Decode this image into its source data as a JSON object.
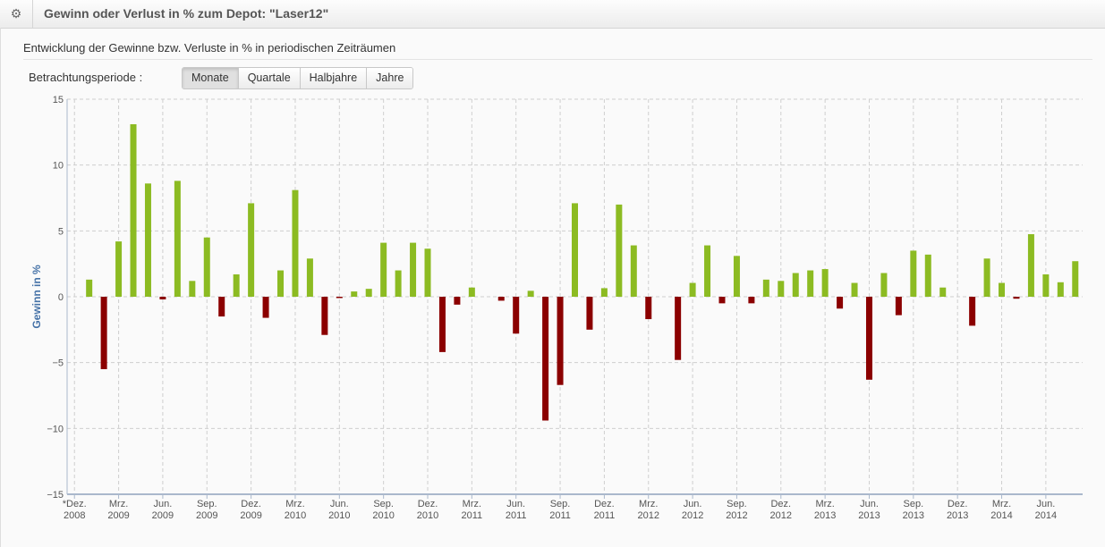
{
  "header": {
    "title": "Gewinn oder Verlust in % zum Depot: \"Laser12\"",
    "icon": "gear-icon"
  },
  "subtitle": "Entwicklung der Gewinne bzw. Verluste in % in periodischen Zeiträumen",
  "period": {
    "label": "Betrachtungsperiode :",
    "options": [
      "Monate",
      "Quartale",
      "Halbjahre",
      "Jahre"
    ],
    "selected": "Monate"
  },
  "chart_data": {
    "type": "bar",
    "title": "",
    "ylabel": "Gewinn in %",
    "xlabel": "",
    "ylim": [
      -15,
      15
    ],
    "yticks": [
      15,
      10,
      5,
      0,
      -5,
      -10,
      -15
    ],
    "grid": true,
    "colors": {
      "positive": "#8cbb22",
      "negative": "#8b0000"
    },
    "categories": [
      "Dez. 2008",
      "Jan. 2009",
      "Feb. 2009",
      "Mrz. 2009",
      "Apr. 2009",
      "Mai 2009",
      "Jun. 2009",
      "Jul. 2009",
      "Aug. 2009",
      "Sep. 2009",
      "Okt. 2009",
      "Nov. 2009",
      "Dez. 2009",
      "Jan. 2010",
      "Feb. 2010",
      "Mrz. 2010",
      "Apr. 2010",
      "Mai 2010",
      "Jun. 2010",
      "Jul. 2010",
      "Aug. 2010",
      "Sep. 2010",
      "Okt. 2010",
      "Nov. 2010",
      "Dez. 2010",
      "Jan. 2011",
      "Feb. 2011",
      "Mrz. 2011",
      "Apr. 2011",
      "Mai 2011",
      "Jun. 2011",
      "Jul. 2011",
      "Aug. 2011",
      "Sep. 2011",
      "Okt. 2011",
      "Nov. 2011",
      "Dez. 2011",
      "Jan. 2012",
      "Feb. 2012",
      "Mrz. 2012",
      "Apr. 2012",
      "Mai 2012",
      "Jun. 2012",
      "Jul. 2012",
      "Aug. 2012",
      "Sep. 2012",
      "Okt. 2012",
      "Nov. 2012",
      "Dez. 2012",
      "Jan. 2013",
      "Feb. 2013",
      "Mrz. 2013",
      "Apr. 2013",
      "Mai 2013",
      "Jun. 2013",
      "Jul. 2013",
      "Aug. 2013",
      "Sep. 2013",
      "Okt. 2013",
      "Nov. 2013",
      "Dez. 2013",
      "Jan. 2014",
      "Feb. 2014",
      "Mrz. 2014",
      "Apr. 2014",
      "Mai 2014",
      "Jun. 2014",
      "Jul. 2014",
      "Aug. 2014"
    ],
    "values": [
      0,
      1.3,
      -5.5,
      4.2,
      13.1,
      8.6,
      -0.2,
      8.8,
      1.2,
      4.5,
      -1.5,
      1.7,
      7.1,
      -1.6,
      2.0,
      8.1,
      2.9,
      -2.9,
      -0.1,
      0.4,
      0.6,
      4.1,
      2.0,
      4.1,
      3.65,
      -4.2,
      -0.6,
      0.7,
      0.0,
      -0.3,
      -2.8,
      0.45,
      -9.4,
      -6.7,
      7.1,
      -2.5,
      0.65,
      7.0,
      3.9,
      -1.7,
      0.0,
      -4.8,
      1.05,
      3.9,
      -0.5,
      3.1,
      -0.5,
      1.3,
      1.2,
      1.8,
      2.0,
      2.1,
      -0.9,
      1.05,
      -6.3,
      1.8,
      -1.4,
      3.5,
      3.2,
      0.7,
      0,
      -2.2,
      2.9,
      1.05,
      -0.15,
      4.75,
      1.7,
      1.1,
      2.7
    ],
    "xtick_labels": [
      [
        "*Dez.",
        "2008"
      ],
      [
        "Mrz.",
        "2009"
      ],
      [
        "Jun.",
        "2009"
      ],
      [
        "Sep.",
        "2009"
      ],
      [
        "Dez.",
        "2009"
      ],
      [
        "Mrz.",
        "2010"
      ],
      [
        "Jun.",
        "2010"
      ],
      [
        "Sep.",
        "2010"
      ],
      [
        "Dez.",
        "2010"
      ],
      [
        "Mrz.",
        "2011"
      ],
      [
        "Jun.",
        "2011"
      ],
      [
        "Sep.",
        "2011"
      ],
      [
        "Dez.",
        "2011"
      ],
      [
        "Mrz.",
        "2012"
      ],
      [
        "Jun.",
        "2012"
      ],
      [
        "Sep.",
        "2012"
      ],
      [
        "Dez.",
        "2012"
      ],
      [
        "Mrz.",
        "2013"
      ],
      [
        "Jun.",
        "2013"
      ],
      [
        "Sep.",
        "2013"
      ],
      [
        "Dez.",
        "2013"
      ],
      [
        "Mrz.",
        "2014"
      ],
      [
        "Jun.",
        "2014"
      ]
    ]
  }
}
